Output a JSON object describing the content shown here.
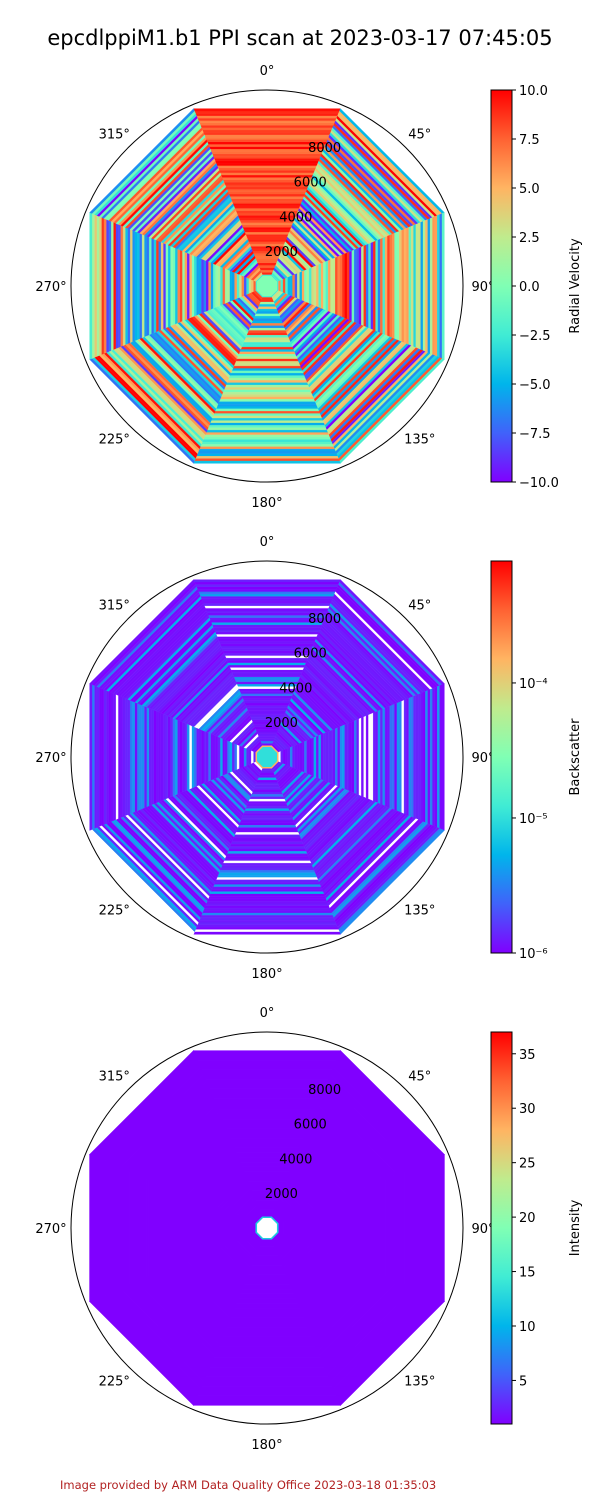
{
  "figure": {
    "title": "epcdlppiM1.b1 PPI scan at 2023-03-17 07:45:05",
    "credit": "Image provided by ARM Data Quality Office 2023-03-18 01:35:03"
  },
  "chart_data": [
    {
      "type": "polar-ppi",
      "title": "",
      "variable": "Radial Velocity",
      "angle_ticks": [
        "0°",
        "45°",
        "90°",
        "135°",
        "180°",
        "225°",
        "270°",
        "315°"
      ],
      "radial_ticks": [
        2000,
        4000,
        6000,
        8000
      ],
      "radial_tick_labels": [
        "2000",
        "4000",
        "6000",
        "8000"
      ],
      "rlim": [
        0,
        10200
      ],
      "inner_blank_radius": 650,
      "grid": false,
      "colorbar": {
        "label": "Radial Velocity",
        "scale": "linear",
        "range": [
          -10.0,
          10.0
        ],
        "ticks": [
          -10.0,
          -7.5,
          -5.0,
          -2.5,
          0.0,
          2.5,
          5.0,
          7.5,
          10.0
        ],
        "tick_labels": [
          "−10.0",
          "−7.5",
          "−5.0",
          "−2.5",
          "0.0",
          "2.5",
          "5.0",
          "7.5",
          "10.0"
        ],
        "colormap": "rainbow"
      },
      "value_range_by_direction": {
        "north": [
          6.0,
          10.0
        ],
        "south": [
          -6.0,
          8.0
        ],
        "east": [
          -10.0,
          10.0
        ],
        "west": [
          -10.0,
          10.0
        ]
      },
      "center_value": 0.0
    },
    {
      "type": "polar-ppi",
      "title": "",
      "variable": "Backscatter",
      "angle_ticks": [
        "0°",
        "45°",
        "90°",
        "135°",
        "180°",
        "225°",
        "270°",
        "315°"
      ],
      "radial_ticks": [
        2000,
        4000,
        6000,
        8000
      ],
      "radial_tick_labels": [
        "2000",
        "4000",
        "6000",
        "8000"
      ],
      "rlim": [
        0,
        10200
      ],
      "inner_blank_radius": 650,
      "grid": false,
      "colorbar": {
        "label": "Backscatter",
        "scale": "log",
        "range": [
          1e-06,
          0.0008
        ],
        "ticks": [
          1e-06,
          1e-05,
          0.0001
        ],
        "tick_labels": [
          "10⁻⁶",
          "10⁻⁵",
          "10⁻⁴"
        ],
        "colormap": "rainbow"
      },
      "background_value": 1e-06,
      "center_value": 1e-05
    },
    {
      "type": "polar-ppi",
      "title": "",
      "variable": "Intensity",
      "angle_ticks": [
        "0°",
        "45°",
        "90°",
        "135°",
        "180°",
        "225°",
        "270°",
        "315°"
      ],
      "radial_ticks": [
        2000,
        4000,
        6000,
        8000
      ],
      "radial_tick_labels": [
        "2000",
        "4000",
        "6000",
        "8000"
      ],
      "rlim": [
        0,
        10200
      ],
      "inner_blank_radius": 650,
      "grid": false,
      "colorbar": {
        "label": "Intensity",
        "scale": "linear",
        "range": [
          1.0,
          37.0
        ],
        "ticks": [
          5,
          10,
          15,
          20,
          25,
          30,
          35
        ],
        "tick_labels": [
          "5",
          "10",
          "15",
          "20",
          "25",
          "30",
          "35"
        ],
        "colormap": "rainbow"
      },
      "background_value": 1.0,
      "center_ring_value": 12.0
    }
  ]
}
